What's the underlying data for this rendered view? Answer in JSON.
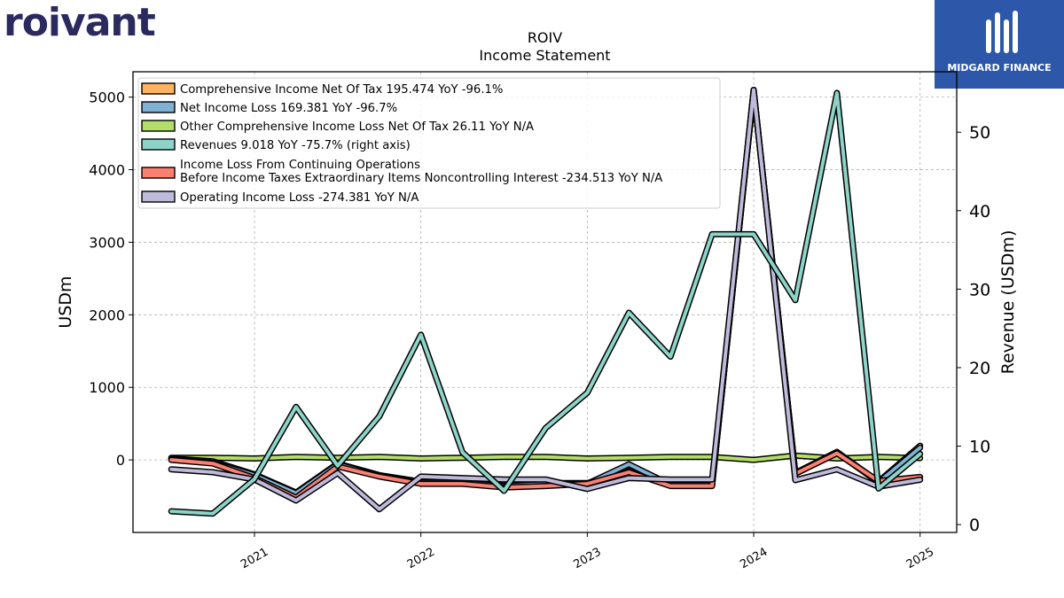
{
  "brand": {
    "logo_text": "roivant"
  },
  "badge": {
    "text": "MIDGARD FINANCE",
    "color": "#2d57a8"
  },
  "chart_data": {
    "type": "line",
    "title": "ROIV",
    "subtitle": "Income Statement",
    "ylabel": "USDm",
    "y2label": "Revenue (USDm)",
    "ylim": [
      -1000,
      5350
    ],
    "y2lim": [
      -1,
      57.7
    ],
    "yticks": [
      0,
      1000,
      2000,
      3000,
      4000,
      5000
    ],
    "y2ticks": [
      0,
      10,
      20,
      30,
      40,
      50
    ],
    "xlim": [
      2020.27,
      2025.22
    ],
    "xticks": [
      "2021",
      "2022",
      "2023",
      "2024",
      "2025"
    ],
    "grid": true,
    "legend_position": "top-left",
    "x": [
      2020.5,
      2020.75,
      2021.0,
      2021.25,
      2021.5,
      2021.75,
      2022.0,
      2022.25,
      2022.5,
      2022.75,
      2023.0,
      2023.25,
      2023.5,
      2023.75,
      2024.0,
      2024.25,
      2024.5,
      2024.75,
      2025.0
    ],
    "series": [
      {
        "name": "Comprehensive Income Net Of Tax  195.474 YoY -96.1%",
        "axis": "left",
        "color": "#fdb462",
        "values": [
          20,
          -20,
          -200,
          -450,
          -50,
          -210,
          -300,
          -300,
          -350,
          -320,
          -320,
          -150,
          -350,
          -350,
          5100,
          -180,
          110,
          -300,
          195
        ]
      },
      {
        "name": "Net Income Loss  169.381 YoY -96.7%",
        "axis": "left",
        "color": "#80b1d3",
        "values": [
          10,
          -40,
          -210,
          -460,
          -60,
          -220,
          -310,
          -310,
          -360,
          -330,
          -330,
          -60,
          -340,
          -340,
          5080,
          -190,
          100,
          -310,
          169
        ]
      },
      {
        "name": "Other Comprehensive Income Loss Net Of Tax  26.11 YoY N/A",
        "axis": "left",
        "color": "#b3de69",
        "values": [
          30,
          30,
          20,
          40,
          30,
          40,
          20,
          30,
          40,
          40,
          20,
          30,
          40,
          40,
          0,
          60,
          20,
          40,
          26
        ]
      },
      {
        "name": "Revenues  9.018 YoY -75.7% (right axis)",
        "axis": "right",
        "color": "#8dd3c7",
        "values": [
          1.7,
          1.4,
          5.8,
          15.0,
          7.5,
          13.8,
          24.2,
          9.2,
          4.3,
          12.3,
          16.8,
          27.0,
          21.4,
          37.0,
          37.0,
          28.6,
          55.0,
          4.6,
          9.0
        ]
      },
      {
        "name": "Income Loss From Continuing Operations\nBefore Income Taxes Extraordinary Items Noncontrolling Interest  -234.513 YoY N/A",
        "axis": "left",
        "color": "#fb8072",
        "values": [
          0,
          -50,
          -250,
          -520,
          -90,
          -230,
          -330,
          -330,
          -380,
          -360,
          -330,
          -170,
          -360,
          -360,
          5090,
          -190,
          90,
          -290,
          -235
        ]
      },
      {
        "name": "Operating Income Loss  -274.381 YoY N/A",
        "axis": "left",
        "color": "#bebada",
        "values": [
          -130,
          -170,
          -270,
          -560,
          -180,
          -680,
          -230,
          -250,
          -270,
          -270,
          -400,
          -250,
          -270,
          -270,
          5100,
          -280,
          -130,
          -370,
          -274
        ]
      }
    ]
  }
}
